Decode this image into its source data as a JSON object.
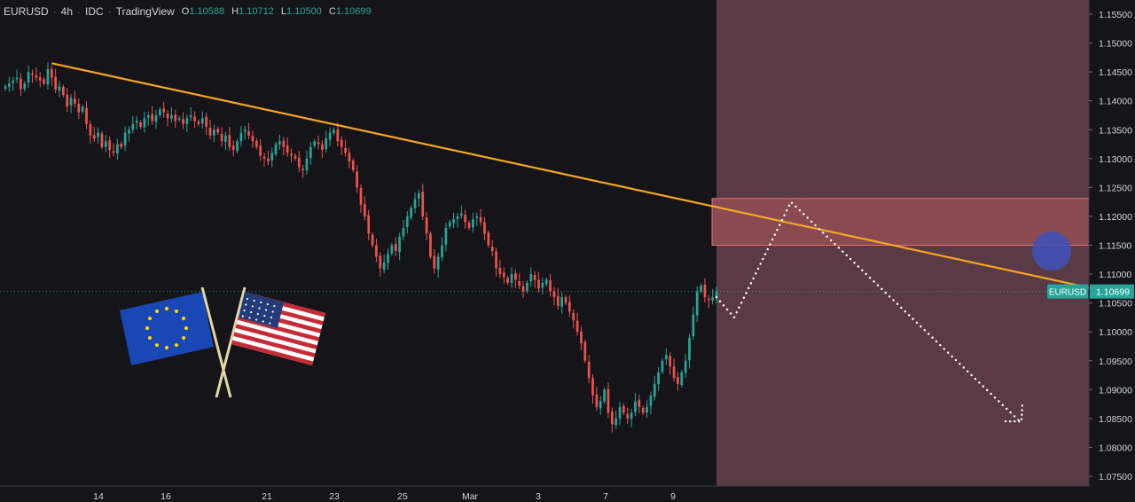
{
  "header": {
    "symbol": "EURUSD",
    "interval": "4h",
    "source": "IDC",
    "platform": "TradingView",
    "ohlc": [
      {
        "key": "O",
        "value": "1.10588"
      },
      {
        "key": "H",
        "value": "1.10712"
      },
      {
        "key": "L",
        "value": "1.10500"
      },
      {
        "key": "C",
        "value": "1.10699"
      }
    ]
  },
  "chart_data": {
    "type": "candlestick",
    "symbol": "EURUSD",
    "timeframe": "4h",
    "y_ticks": [
      "1.15500",
      "1.15000",
      "1.14500",
      "1.14000",
      "1.13500",
      "1.13000",
      "1.12500",
      "1.12000",
      "1.11500",
      "1.11000",
      "1.10500",
      "1.10000",
      "1.09500",
      "1.09000",
      "1.08500",
      "1.08000",
      "1.07500"
    ],
    "x_ticks": [
      "14",
      "16",
      "21",
      "23",
      "25",
      "Mar",
      "3",
      "7",
      "9"
    ],
    "ylim": [
      1.0735,
      1.1565
    ],
    "last_price": {
      "label": "EURUSD",
      "value": "1.10699",
      "numeric": 1.10699
    },
    "candles_close": [
      1.1425,
      1.143,
      1.1435,
      1.144,
      1.142,
      1.143,
      1.145,
      1.1445,
      1.144,
      1.1435,
      1.143,
      1.1455,
      1.144,
      1.142,
      1.1425,
      1.141,
      1.139,
      1.1405,
      1.1395,
      1.138,
      1.139,
      1.136,
      1.134,
      1.1335,
      1.1345,
      1.132,
      1.133,
      1.1315,
      1.131,
      1.1325,
      1.132,
      1.1345,
      1.135,
      1.136,
      1.1365,
      1.1355,
      1.137,
      1.1375,
      1.1365,
      1.1375,
      1.1385,
      1.138,
      1.137,
      1.1375,
      1.1365,
      1.137,
      1.136,
      1.137,
      1.1375,
      1.1365,
      1.136,
      1.137,
      1.1355,
      1.134,
      1.135,
      1.1345,
      1.133,
      1.134,
      1.132,
      1.1315,
      1.133,
      1.1345,
      1.135,
      1.134,
      1.133,
      1.132,
      1.1305,
      1.13,
      1.1295,
      1.131,
      1.1325,
      1.133,
      1.132,
      1.131,
      1.1305,
      1.13,
      1.1285,
      1.128,
      1.13,
      1.132,
      1.133,
      1.1325,
      1.1315,
      1.1335,
      1.1345,
      1.135,
      1.133,
      1.132,
      1.131,
      1.1295,
      1.128,
      1.125,
      1.122,
      1.12,
      1.117,
      1.115,
      1.113,
      1.111,
      1.112,
      1.1135,
      1.115,
      1.114,
      1.1165,
      1.118,
      1.12,
      1.1215,
      1.123,
      1.124,
      1.12,
      1.117,
      1.113,
      1.111,
      1.113,
      1.115,
      1.118,
      1.119,
      1.1195,
      1.12,
      1.1205,
      1.119,
      1.118,
      1.1195,
      1.12,
      1.119,
      1.117,
      1.115,
      1.114,
      1.111,
      1.11,
      1.1095,
      1.1085,
      1.11,
      1.109,
      1.108,
      1.107,
      1.1085,
      1.11,
      1.109,
      1.1075,
      1.1085,
      1.109,
      1.107,
      1.106,
      1.1045,
      1.106,
      1.105,
      1.1035,
      1.102,
      1.1,
      1.098,
      1.095,
      1.092,
      1.089,
      1.087,
      1.088,
      1.09,
      1.086,
      1.084,
      1.085,
      1.087,
      1.086,
      1.085,
      1.086,
      1.088,
      1.087,
      1.086,
      1.087,
      1.089,
      1.091,
      1.093,
      1.095,
      1.096,
      1.094,
      1.092,
      1.091,
      1.093,
      1.095,
      1.099,
      1.103,
      1.107,
      1.108,
      1.106,
      1.1055,
      1.106,
      1.107
    ],
    "trendline": {
      "from_index": 12,
      "from_price": 1.1465,
      "extends_to": "right axis",
      "end_price": 1.10766,
      "color": "#f5a623"
    },
    "resistance_zone": {
      "top": 1.1231,
      "bottom": 1.115,
      "color": "#e57373"
    },
    "future_area_color": "#5a3a44",
    "projection_path": [
      1.106,
      1.1025,
      1.1225,
      1.0845
    ],
    "target_circle_price": 1.114
  },
  "colors": {
    "up": "#26a69a",
    "down": "#ef5350",
    "background": "#151519",
    "axis_text": "#d1d4dc",
    "price_badge": "#26a69a"
  }
}
